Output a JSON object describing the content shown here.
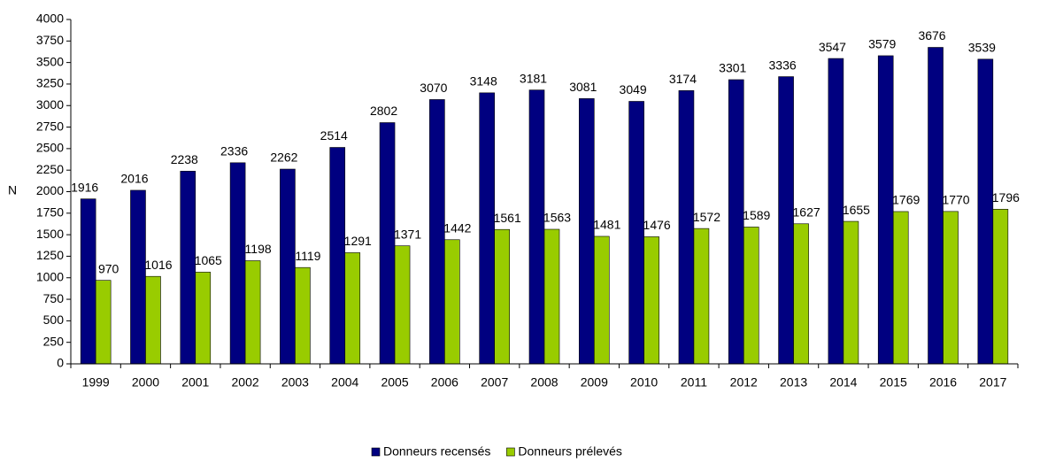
{
  "chart_data": {
    "type": "bar",
    "y_label": "N",
    "categories": [
      "1999",
      "2000",
      "2001",
      "2002",
      "2003",
      "2004",
      "2005",
      "2006",
      "2007",
      "2008",
      "2009",
      "2010",
      "2011",
      "2012",
      "2013",
      "2014",
      "2015",
      "2016",
      "2017"
    ],
    "series": [
      {
        "name": "Donneurs recensés",
        "color": "#000080",
        "values": [
          1916,
          2016,
          2238,
          2336,
          2262,
          2514,
          2802,
          3070,
          3148,
          3181,
          3081,
          3049,
          3174,
          3301,
          3336,
          3547,
          3579,
          3676,
          3539
        ]
      },
      {
        "name": "Donneurs prélevés",
        "color": "#99cc00",
        "values": [
          970,
          1016,
          1065,
          1198,
          1119,
          1291,
          1371,
          1442,
          1561,
          1563,
          1481,
          1476,
          1572,
          1589,
          1627,
          1655,
          1769,
          1770,
          1796
        ]
      }
    ],
    "ylim": [
      0,
      4000
    ],
    "yticks": [
      0,
      250,
      500,
      750,
      1000,
      1250,
      1500,
      1750,
      2000,
      2250,
      2500,
      2750,
      3000,
      3250,
      3500,
      3750,
      4000
    ],
    "legend": "bottom",
    "grid": false
  }
}
